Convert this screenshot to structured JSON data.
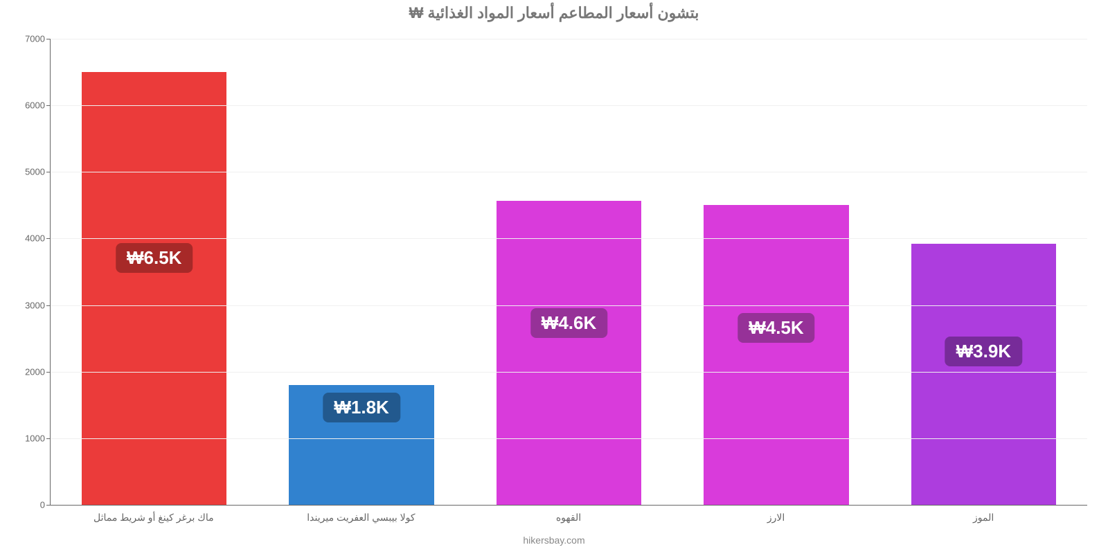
{
  "chart": {
    "type": "bar",
    "title": "بتشون أسعار المطاعم أسعار المواد الغذائية ₩",
    "title_fontsize": 22,
    "title_color": "#777777",
    "attribution": "hikersbay.com",
    "attribution_fontsize": 14,
    "attribution_color": "#888888",
    "background_color": "#ffffff",
    "grid_color": "#f0f0f0",
    "axis_color": "#666666",
    "ylim": [
      0,
      7000
    ],
    "ytick_step": 1000,
    "ytick_labels": [
      "0",
      "1000",
      "2000",
      "3000",
      "4000",
      "5000",
      "6000",
      "7000"
    ],
    "ytick_fontsize": 13,
    "xlabel_fontsize": 14,
    "xlabel_color": "#666666",
    "bar_width_pct": 70,
    "badge_fontsize": 26,
    "badge_text_color": "#ffffff",
    "categories": [
      "ماك برغر كينغ أو شريط مماثل",
      "كولا بيبسي العفريت ميريندا",
      "القهوه",
      "الارز",
      "الموز"
    ],
    "values": [
      6500,
      1800,
      4570,
      4500,
      3920
    ],
    "bar_colors": [
      "#eb3b3a",
      "#3182cf",
      "#d93bdb",
      "#d93bdb",
      "#ad3dde"
    ],
    "badge_labels": [
      "₩6.5K",
      "₩1.8K",
      "₩4.6K",
      "₩4.5K",
      "₩3.9K"
    ],
    "badge_colors": [
      "#a72928",
      "#22598e",
      "#963198",
      "#963198",
      "#772b99"
    ],
    "badge_y_values": [
      3700,
      1450,
      2720,
      2650,
      2290
    ]
  }
}
